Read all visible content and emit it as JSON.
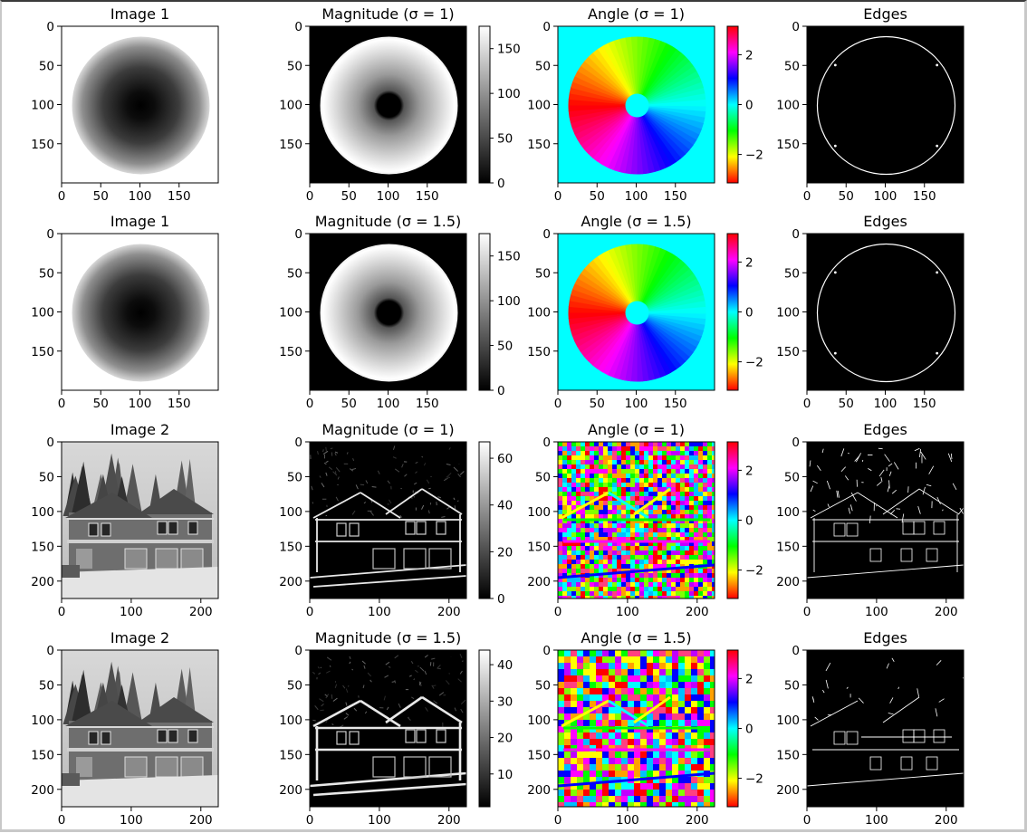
{
  "chart_data": [
    {
      "type": "heatmap",
      "title": "Image 1",
      "content": "synthetic-disc",
      "xticks": [
        0,
        50,
        100,
        150
      ],
      "yticks": [
        0,
        50,
        100,
        150
      ],
      "xlim": [
        0,
        200
      ],
      "ylim": [
        200,
        0
      ],
      "colormap": "gray"
    },
    {
      "type": "heatmap",
      "title": "Magnitude (σ = 1)",
      "content": "disc-magnitude",
      "xticks": [
        0,
        50,
        100,
        150
      ],
      "yticks": [
        0,
        50,
        100,
        150
      ],
      "xlim": [
        0,
        200
      ],
      "ylim": [
        200,
        0
      ],
      "colormap": "gray",
      "colorbar": {
        "min": 0,
        "max": 175,
        "ticks": [
          0,
          50,
          100,
          150
        ]
      }
    },
    {
      "type": "heatmap",
      "title": "Angle (σ = 1)",
      "content": "disc-angle",
      "xticks": [
        0,
        50,
        100,
        150
      ],
      "yticks": [
        0,
        50,
        100,
        150
      ],
      "xlim": [
        0,
        200
      ],
      "ylim": [
        200,
        0
      ],
      "colormap": "hsv",
      "colorbar": {
        "min": -3.14,
        "max": 3.14,
        "ticks": [
          -2,
          0,
          2
        ],
        "tick_labels": [
          "−2",
          "0",
          "2"
        ]
      }
    },
    {
      "type": "heatmap",
      "title": "Edges",
      "content": "disc-edges",
      "xticks": [
        0,
        50,
        100,
        150
      ],
      "yticks": [
        0,
        50,
        100,
        150
      ],
      "xlim": [
        0,
        200
      ],
      "ylim": [
        200,
        0
      ],
      "colormap": "gray"
    },
    {
      "type": "heatmap",
      "title": "Image 1",
      "content": "synthetic-disc",
      "xticks": [
        0,
        50,
        100,
        150
      ],
      "yticks": [
        0,
        50,
        100,
        150
      ],
      "xlim": [
        0,
        200
      ],
      "ylim": [
        200,
        0
      ],
      "colormap": "gray"
    },
    {
      "type": "heatmap",
      "title": "Magnitude (σ = 1.5)",
      "content": "disc-magnitude",
      "xticks": [
        0,
        50,
        100,
        150
      ],
      "yticks": [
        0,
        50,
        100,
        150
      ],
      "xlim": [
        0,
        200
      ],
      "ylim": [
        200,
        0
      ],
      "colormap": "gray",
      "colorbar": {
        "min": 0,
        "max": 175,
        "ticks": [
          0,
          50,
          100,
          150
        ]
      }
    },
    {
      "type": "heatmap",
      "title": "Angle (σ = 1.5)",
      "content": "disc-angle",
      "xticks": [
        0,
        50,
        100,
        150
      ],
      "yticks": [
        0,
        50,
        100,
        150
      ],
      "xlim": [
        0,
        200
      ],
      "ylim": [
        200,
        0
      ],
      "colormap": "hsv",
      "colorbar": {
        "min": -3.14,
        "max": 3.14,
        "ticks": [
          -2,
          0,
          2
        ],
        "tick_labels": [
          "−2",
          "0",
          "2"
        ]
      }
    },
    {
      "type": "heatmap",
      "title": "Edges",
      "content": "disc-edges",
      "xticks": [
        0,
        50,
        100,
        150
      ],
      "yticks": [
        0,
        50,
        100,
        150
      ],
      "xlim": [
        0,
        200
      ],
      "ylim": [
        200,
        0
      ],
      "colormap": "gray"
    },
    {
      "type": "heatmap",
      "title": "Image 2",
      "content": "house-photo",
      "xticks": [
        0,
        100,
        200
      ],
      "yticks": [
        0,
        50,
        100,
        150,
        200
      ],
      "xlim": [
        0,
        225
      ],
      "ylim": [
        225,
        0
      ],
      "colormap": "gray"
    },
    {
      "type": "heatmap",
      "title": "Magnitude (σ = 1)",
      "content": "house-magnitude",
      "xticks": [
        0,
        100,
        200
      ],
      "yticks": [
        0,
        50,
        100,
        150,
        200
      ],
      "xlim": [
        0,
        225
      ],
      "ylim": [
        225,
        0
      ],
      "colormap": "gray",
      "colorbar": {
        "min": 0,
        "max": 67,
        "ticks": [
          0,
          20,
          40,
          60
        ]
      }
    },
    {
      "type": "heatmap",
      "title": "Angle (σ = 1)",
      "content": "house-angle",
      "xticks": [
        0,
        100,
        200
      ],
      "yticks": [
        0,
        50,
        100,
        150,
        200
      ],
      "xlim": [
        0,
        225
      ],
      "ylim": [
        225,
        0
      ],
      "colormap": "hsv",
      "colorbar": {
        "min": -3.14,
        "max": 3.14,
        "ticks": [
          -2,
          0,
          2
        ],
        "tick_labels": [
          "−2",
          "0",
          "2"
        ]
      }
    },
    {
      "type": "heatmap",
      "title": "Edges",
      "content": "house-edges",
      "xticks": [
        0,
        100,
        200
      ],
      "yticks": [
        0,
        50,
        100,
        150,
        200
      ],
      "xlim": [
        0,
        225
      ],
      "ylim": [
        225,
        0
      ],
      "colormap": "gray"
    },
    {
      "type": "heatmap",
      "title": "Image 2",
      "content": "house-photo",
      "xticks": [
        0,
        100,
        200
      ],
      "yticks": [
        0,
        50,
        100,
        150,
        200
      ],
      "xlim": [
        0,
        225
      ],
      "ylim": [
        225,
        0
      ],
      "colormap": "gray"
    },
    {
      "type": "heatmap",
      "title": "Magnitude (σ = 1.5)",
      "content": "house-magnitude",
      "xticks": [
        0,
        100,
        200
      ],
      "yticks": [
        0,
        50,
        100,
        150,
        200
      ],
      "xlim": [
        0,
        225
      ],
      "ylim": [
        225,
        0
      ],
      "colormap": "gray",
      "colorbar": {
        "min": 1,
        "max": 44,
        "ticks": [
          10,
          20,
          30,
          40
        ]
      }
    },
    {
      "type": "heatmap",
      "title": "Angle (σ = 1.5)",
      "content": "house-angle",
      "xticks": [
        0,
        100,
        200
      ],
      "yticks": [
        0,
        50,
        100,
        150,
        200
      ],
      "xlim": [
        0,
        225
      ],
      "ylim": [
        225,
        0
      ],
      "colormap": "hsv",
      "colorbar": {
        "min": -3.14,
        "max": 3.14,
        "ticks": [
          -2,
          0,
          2
        ],
        "tick_labels": [
          "−2",
          "0",
          "2"
        ]
      }
    },
    {
      "type": "heatmap",
      "title": "Edges",
      "content": "house-edges",
      "xticks": [
        0,
        100,
        200
      ],
      "yticks": [
        0,
        50,
        100,
        150,
        200
      ],
      "xlim": [
        0,
        225
      ],
      "ylim": [
        225,
        0
      ],
      "colormap": "gray"
    }
  ]
}
